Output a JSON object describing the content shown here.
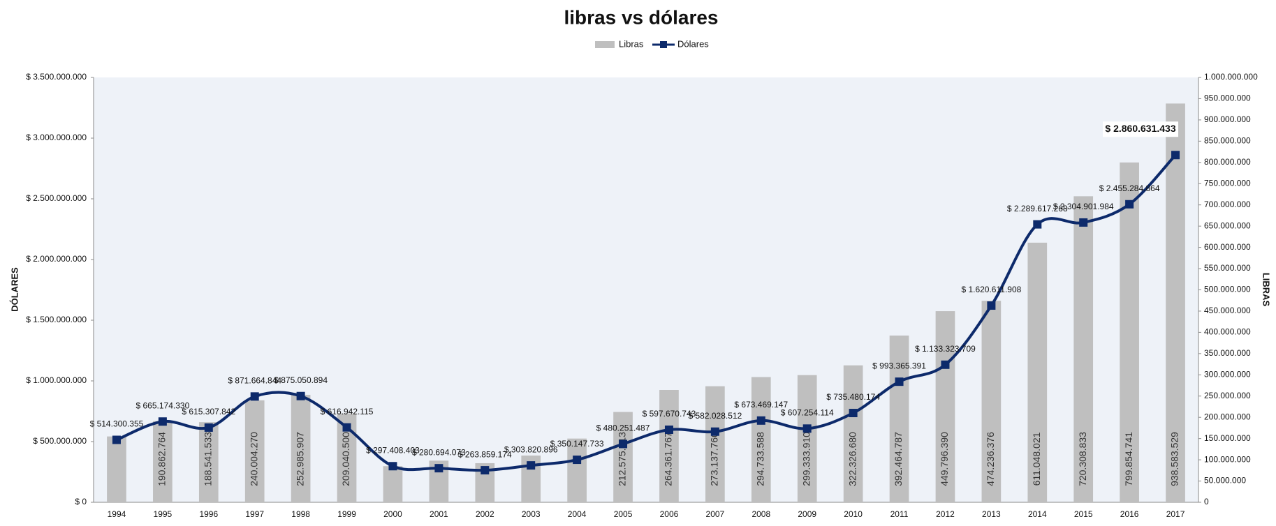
{
  "chart_data": {
    "type": "bar-line",
    "title": "libras vs dólares",
    "y_label": "DÓLARES",
    "y2_label": "LIBRAS",
    "categories": [
      "1994",
      "1995",
      "1996",
      "1997",
      "1998",
      "1999",
      "2000",
      "2001",
      "2002",
      "2003",
      "2004",
      "2005",
      "2006",
      "2007",
      "2008",
      "2009",
      "2010",
      "2011",
      "2012",
      "2013",
      "2014",
      "2015",
      "2016",
      "2017"
    ],
    "series": [
      {
        "name": "Libras",
        "type": "bar",
        "axis": "y2",
        "color": "#bfbfbf",
        "values": [
          155000000,
          190862764,
          188541533,
          240004270,
          252985907,
          209040500,
          85000000,
          98000000,
          92000000,
          110000000,
          150000000,
          212575513,
          264361767,
          273137760,
          294733588,
          299333910,
          322326680,
          392464787,
          449796390,
          474236376,
          611048021,
          720308833,
          799854741,
          938583529
        ],
        "value_labels": [
          null,
          "190.862.764",
          "188.541.533",
          "240.004.270",
          "252.985.907",
          "209.040.500",
          null,
          null,
          null,
          null,
          null,
          "212.575.513",
          "264.361.767",
          "273.137.760",
          "294.733.588",
          "299.333.910",
          "322.326.680",
          "392.464.787",
          "449.796.390",
          "474.236.376",
          "611.048.021",
          "720.308.833",
          "799.854.741",
          "938.583.529"
        ]
      },
      {
        "name": "Dólares",
        "type": "line",
        "axis": "y",
        "color": "#0d2a6b",
        "values": [
          514300355,
          665174330,
          615307842,
          871664844,
          875050894,
          616942115,
          297408403,
          280694073,
          263859174,
          303820896,
          350147733,
          480251487,
          597670743,
          582028512,
          673469147,
          607254114,
          735480174,
          993365391,
          1133323709,
          1620611908,
          2289617268,
          2304901984,
          2455284864,
          2860631433
        ],
        "value_labels": [
          "$ 514.300.355",
          "$ 665.174.330",
          "$ 615.307.842",
          "$ 871.664.844",
          "$ 875.050.894",
          "$ 616.942.115",
          "$ 297.408.403",
          "$ 280.694.073",
          "$ 263.859.174",
          "$ 303.820.896",
          "$ 350.147.733",
          "$ 480.251.487",
          "$ 597.670.743",
          "$ 582.028.512",
          "$ 673.469.147",
          "$ 607.254.114",
          "$ 735.480.174",
          "$ 993.365.391",
          "$ 1.133.323.709",
          "$ 1.620.611.908",
          "$ 2.289.617.268",
          "$ 2.304.901.984",
          "$ 2.455.284.864",
          "$ 2.860.631.433"
        ]
      }
    ],
    "ylim": [
      0,
      3500000000
    ],
    "yticks": [
      {
        "value": 0,
        "label": "$ 0"
      },
      {
        "value": 500000000,
        "label": "$ 500.000.000"
      },
      {
        "value": 1000000000,
        "label": "$ 1.000.000.000"
      },
      {
        "value": 1500000000,
        "label": "$ 1.500.000.000"
      },
      {
        "value": 2000000000,
        "label": "$ 2.000.000.000"
      },
      {
        "value": 2500000000,
        "label": "$ 2.500.000.000"
      },
      {
        "value": 3000000000,
        "label": "$ 3.000.000.000"
      },
      {
        "value": 3500000000,
        "label": "$ 3.500.000.000"
      }
    ],
    "y2lim": [
      0,
      1000000000
    ],
    "y2ticks": [
      0,
      {
        "value": 50000000,
        "label": "50.000.000"
      },
      {
        "value": 100000000,
        "label": "100.000.000"
      },
      {
        "value": 150000000,
        "label": "150.000.000"
      },
      {
        "value": 200000000,
        "label": "200.000.000"
      },
      {
        "value": 250000000,
        "label": "250.000.000"
      },
      {
        "value": 300000000,
        "label": "300.000.000"
      },
      {
        "value": 350000000,
        "label": "350.000.000"
      },
      {
        "value": 400000000,
        "label": "400.000.000"
      },
      {
        "value": 450000000,
        "label": "450.000.000"
      },
      {
        "value": 500000000,
        "label": "500.000.000"
      },
      {
        "value": 550000000,
        "label": "550.000.000"
      },
      {
        "value": 600000000,
        "label": "600.000.000"
      },
      {
        "value": 650000000,
        "label": "650.000.000"
      },
      {
        "value": 700000000,
        "label": "700.000.000"
      },
      {
        "value": 750000000,
        "label": "750.000.000"
      },
      {
        "value": 800000000,
        "label": "800.000.000"
      },
      {
        "value": 850000000,
        "label": "850.000.000"
      },
      {
        "value": 900000000,
        "label": "900.000.000"
      },
      {
        "value": 950000000,
        "label": "950.000.000"
      },
      {
        "value": 1000000000,
        "label": "1.000.000.000"
      }
    ],
    "grid": false,
    "legend": "top"
  }
}
